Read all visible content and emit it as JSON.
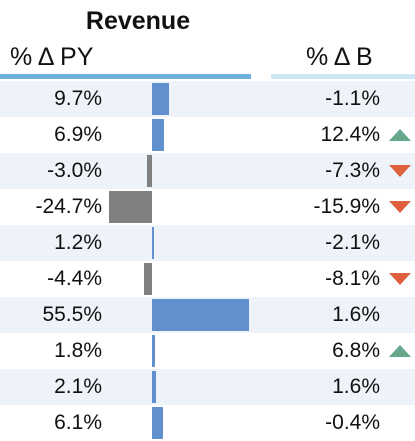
{
  "header": {
    "title": "Revenue",
    "col_py": "% Δ PY",
    "col_b": "% Δ B"
  },
  "colors": {
    "bar_positive": "#628fce",
    "bar_negative": "#808080",
    "arrow_up": "#66a88c",
    "arrow_down": "#e0603d",
    "row_alt": "#edf3f9"
  },
  "rows": [
    {
      "py": "9.7%",
      "py_value": 9.7,
      "b": "-1.1%",
      "trend": "none"
    },
    {
      "py": "6.9%",
      "py_value": 6.9,
      "b": "12.4%",
      "trend": "up"
    },
    {
      "py": "-3.0%",
      "py_value": -3.0,
      "b": "-7.3%",
      "trend": "down"
    },
    {
      "py": "-24.7%",
      "py_value": -24.7,
      "b": "-15.9%",
      "trend": "down"
    },
    {
      "py": "1.2%",
      "py_value": 1.2,
      "b": "-2.1%",
      "trend": "none"
    },
    {
      "py": "-4.4%",
      "py_value": -4.4,
      "b": "-8.1%",
      "trend": "down"
    },
    {
      "py": "55.5%",
      "py_value": 55.5,
      "b": "1.6%",
      "trend": "none"
    },
    {
      "py": "1.8%",
      "py_value": 1.8,
      "b": "6.8%",
      "trend": "up"
    },
    {
      "py": "2.1%",
      "py_value": 2.1,
      "b": "1.6%",
      "trend": "none"
    },
    {
      "py": "6.1%",
      "py_value": 6.1,
      "b": "-0.4%",
      "trend": "none"
    }
  ]
}
